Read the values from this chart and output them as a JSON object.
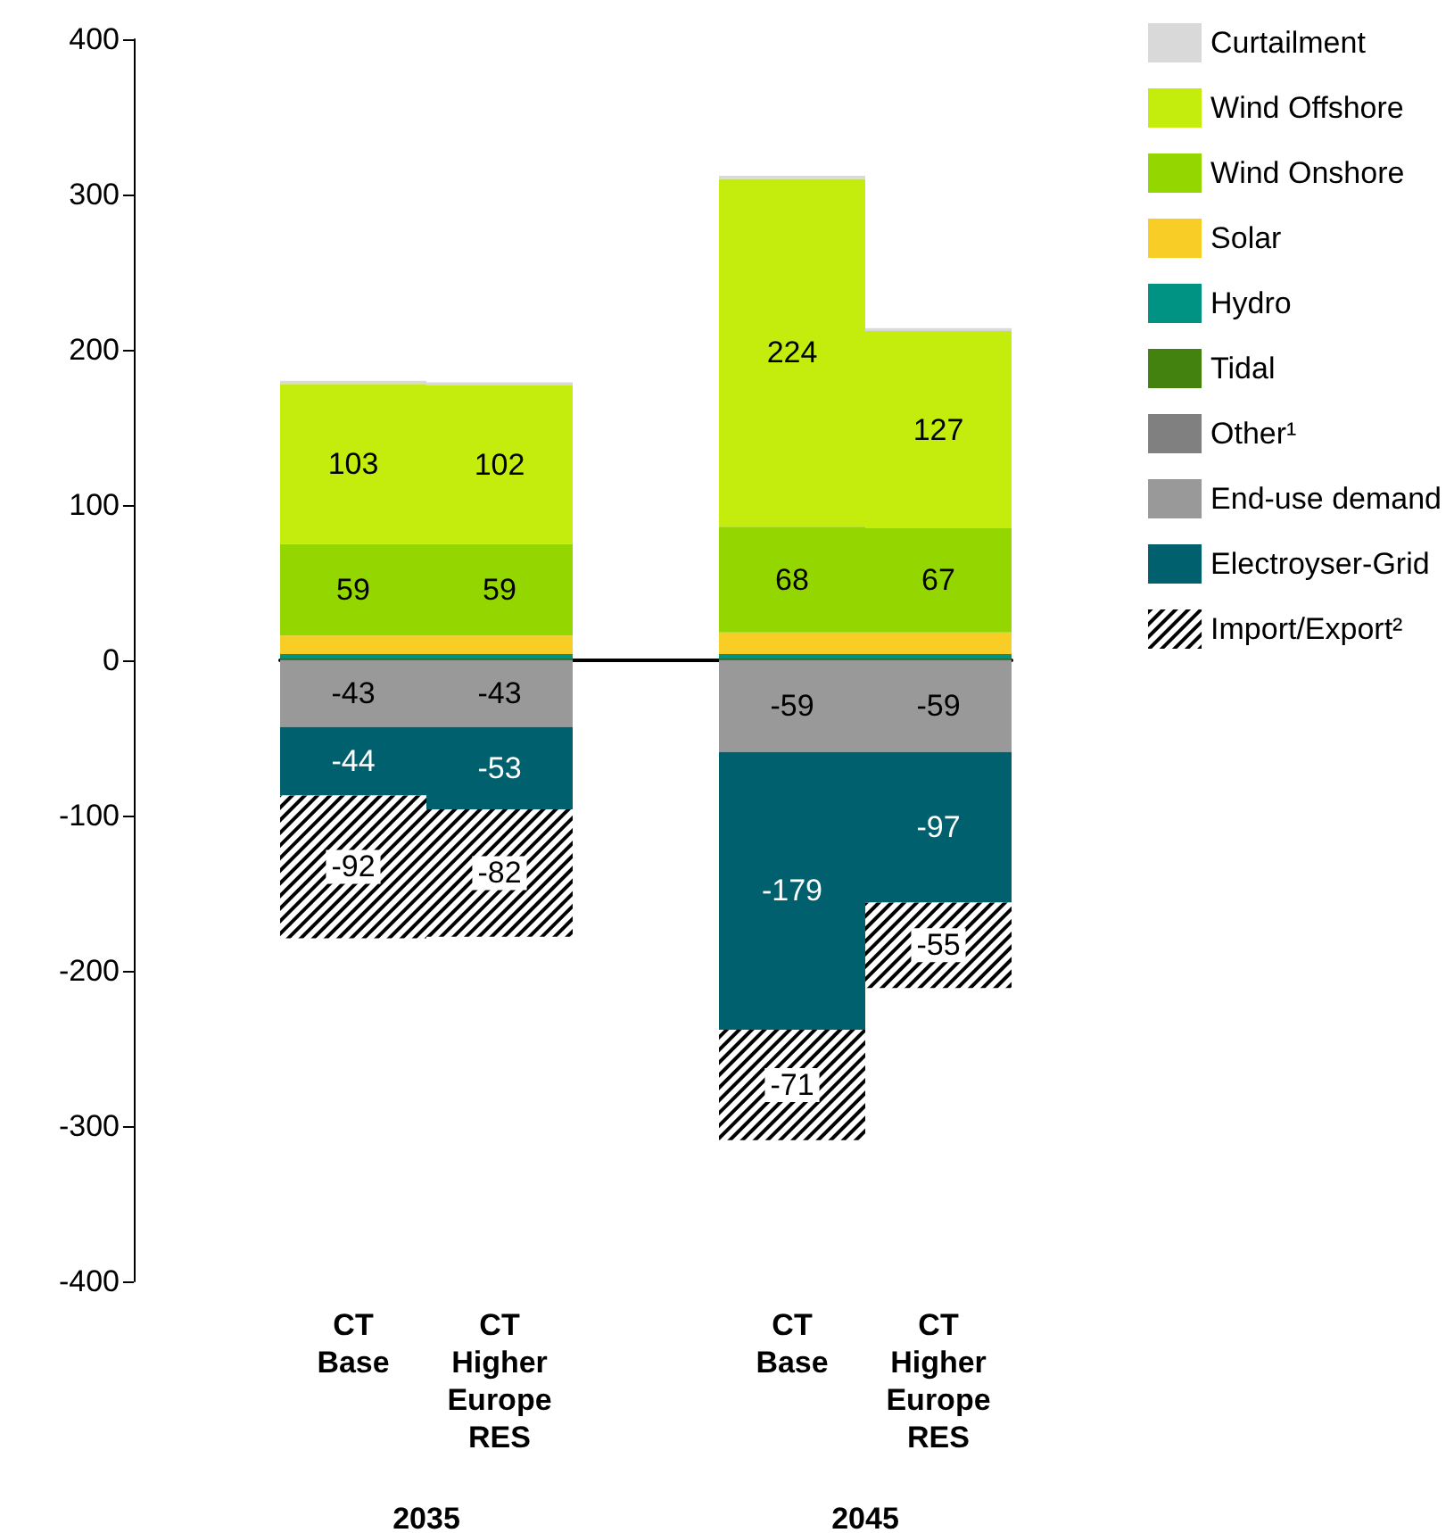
{
  "chart_data": {
    "type": "bar",
    "stacked": true,
    "categories": [
      "CT\nBase",
      "CT\nHigher\nEurope\nRES",
      null,
      "CT\nBase",
      "CT\nHigher\nEurope\nRES"
    ],
    "annotations": [
      "2035",
      "2045"
    ],
    "ylim": [
      -400,
      400
    ],
    "yticks": [
      -400,
      -300,
      -200,
      -100,
      0,
      100,
      200,
      300,
      400
    ],
    "legend": "right",
    "series": [
      {
        "name": "Tidal",
        "color": "#43820f",
        "values": [
          1,
          1,
          null,
          1,
          1
        ]
      },
      {
        "name": "Hydro",
        "color": "#009384",
        "values": [
          3,
          3,
          null,
          3,
          3
        ]
      },
      {
        "name": "Solar",
        "color": "#f8cd25",
        "values": [
          12,
          12,
          null,
          14,
          14
        ]
      },
      {
        "name": "Wind Onshore",
        "color": "#94d600",
        "values": [
          59,
          59,
          null,
          68,
          67
        ],
        "value_labels": [
          "59",
          "59",
          null,
          "68",
          "67"
        ]
      },
      {
        "name": "Wind Offshore",
        "color": "#c4ec0d",
        "values": [
          103,
          102,
          null,
          224,
          127
        ],
        "value_labels": [
          "103",
          "102",
          null,
          "224",
          "127"
        ]
      },
      {
        "name": "Curtailment",
        "color": "#d9d9d9",
        "values": [
          2,
          2,
          null,
          2,
          2
        ]
      },
      {
        "name": "Other¹",
        "color": "#808080",
        "values": [
          null,
          null,
          null,
          null,
          null
        ]
      },
      {
        "name": "End-use demand",
        "color": "#999999",
        "values": [
          -43,
          -43,
          null,
          -59,
          -59
        ],
        "value_labels": [
          "-43",
          "-43",
          null,
          "-59",
          "-59"
        ]
      },
      {
        "name": "Electroyser-Grid",
        "color": "#00606e",
        "values": [
          -44,
          -53,
          null,
          -179,
          -97
        ],
        "value_labels": [
          "-44",
          "-53",
          null,
          "-179",
          "-97"
        ]
      },
      {
        "name": "Import/Export²",
        "color": "#000000",
        "values": [
          -92,
          -82,
          null,
          -71,
          -55
        ],
        "value_labels": [
          "-92",
          "-82",
          null,
          "-71",
          "-55"
        ]
      }
    ]
  }
}
